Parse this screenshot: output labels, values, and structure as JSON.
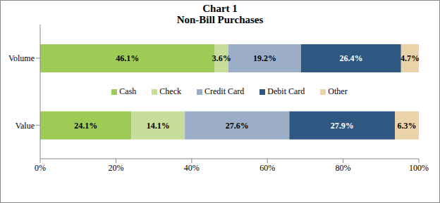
{
  "chart_data": {
    "type": "bar",
    "title": "Chart 1",
    "subtitle": "Non-Bill Purchases",
    "orientation": "horizontal",
    "stacked": true,
    "data_labels": true,
    "grid": false,
    "legend": "center",
    "categories": [
      "Volume",
      "Value"
    ],
    "series": [
      {
        "name": "Cash",
        "color": "#9dcb56",
        "values": [
          46.1,
          24.1
        ],
        "value_labels": [
          "46.1%",
          "24.1%"
        ]
      },
      {
        "name": "Check",
        "color": "#c7dd9c",
        "values": [
          3.6,
          14.1
        ],
        "value_labels": [
          "3.6%",
          "14.1%"
        ]
      },
      {
        "name": "Credit Card",
        "color": "#9badc7",
        "values": [
          19.2,
          27.6
        ],
        "value_labels": [
          "19.2%",
          "27.6%"
        ]
      },
      {
        "name": "Debit Card",
        "color": "#2e5881",
        "values": [
          26.4,
          27.9
        ],
        "value_labels": [
          "26.4%",
          "27.9%"
        ]
      },
      {
        "name": "Other",
        "color": "#ead3a8",
        "values": [
          4.7,
          6.3
        ],
        "value_labels": [
          "4.7%",
          "6.3%"
        ]
      }
    ],
    "xlim": [
      0,
      100
    ],
    "xticks": [
      {
        "value": 0,
        "label": "0%"
      },
      {
        "value": 20,
        "label": "20%"
      },
      {
        "value": 40,
        "label": "40%"
      },
      {
        "value": 60,
        "label": "60%"
      },
      {
        "value": 80,
        "label": "80%"
      },
      {
        "value": 100,
        "label": "100%"
      }
    ]
  }
}
